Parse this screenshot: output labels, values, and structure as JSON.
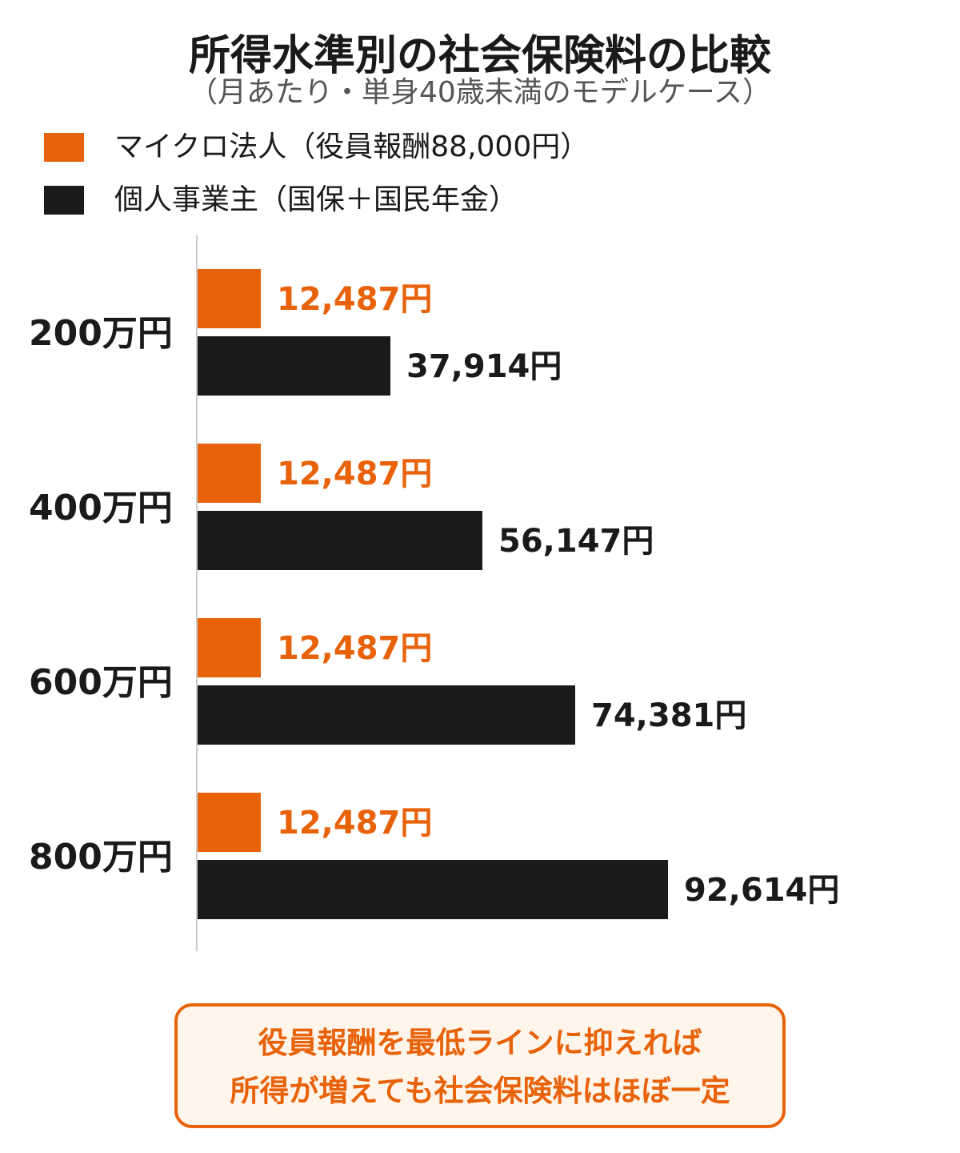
{
  "colors": {
    "micro": "#e8620a",
    "sole": "#1a1a1a",
    "axis": "#cccccc",
    "note_border": "#e8620a",
    "note_bg": "#fff5ea"
  },
  "chart_data": {
    "type": "bar",
    "orientation": "horizontal",
    "title": "所得水準別の社会保険料の比較",
    "subtitle": "（月あたり・単身40歳未満のモデルケース）",
    "categories": [
      "200万円",
      "400万円",
      "600万円",
      "800万円"
    ],
    "series": [
      {
        "name": "マイクロ法人（役員報酬88,000円）",
        "values": [
          12487,
          12487,
          12487,
          12487
        ],
        "labels": [
          "12,487円",
          "12,487円",
          "12,487円",
          "12,487円"
        ]
      },
      {
        "name": "個人事業主（国保＋国民年金）",
        "values": [
          37914,
          56147,
          74381,
          92614
        ],
        "labels": [
          "37,914円",
          "56,147円",
          "74,381円",
          "92,614円"
        ]
      }
    ],
    "xlim": [
      0,
      100000
    ],
    "grid": false,
    "legend": "top-left"
  },
  "note": {
    "lines": [
      "役員報酬を最低ラインに抑えれば",
      "所得が増えても社会保険料はほぼ一定"
    ]
  }
}
